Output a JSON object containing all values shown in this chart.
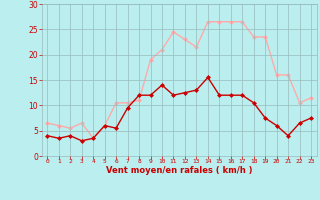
{
  "hours": [
    0,
    1,
    2,
    3,
    4,
    5,
    6,
    7,
    8,
    9,
    10,
    11,
    12,
    13,
    14,
    15,
    16,
    17,
    18,
    19,
    20,
    21,
    22,
    23
  ],
  "wind_avg": [
    4,
    3.5,
    4,
    3,
    3.5,
    6,
    5.5,
    9.5,
    12,
    12,
    14,
    12,
    12.5,
    13,
    15.5,
    12,
    12,
    12,
    10.5,
    7.5,
    6,
    4,
    6.5,
    7.5
  ],
  "wind_gust": [
    6.5,
    6,
    5.5,
    6.5,
    3.5,
    6,
    10.5,
    10.5,
    11,
    19,
    21,
    24.5,
    23,
    21.5,
    26.5,
    26.5,
    26.5,
    26.5,
    23.5,
    23.5,
    16,
    16,
    10.5,
    11.5
  ],
  "avg_color": "#cc0000",
  "gust_color": "#ffaaaa",
  "bg_color": "#bbeeee",
  "grid_color": "#99bbbb",
  "xlabel": "Vent moyen/en rafales ( km/h )",
  "xlabel_color": "#cc0000",
  "tick_color": "#cc0000",
  "ylim": [
    0,
    30
  ],
  "yticks": [
    0,
    5,
    10,
    15,
    20,
    25,
    30
  ],
  "marker": "D",
  "marker_size": 2.0,
  "line_width": 1.0
}
